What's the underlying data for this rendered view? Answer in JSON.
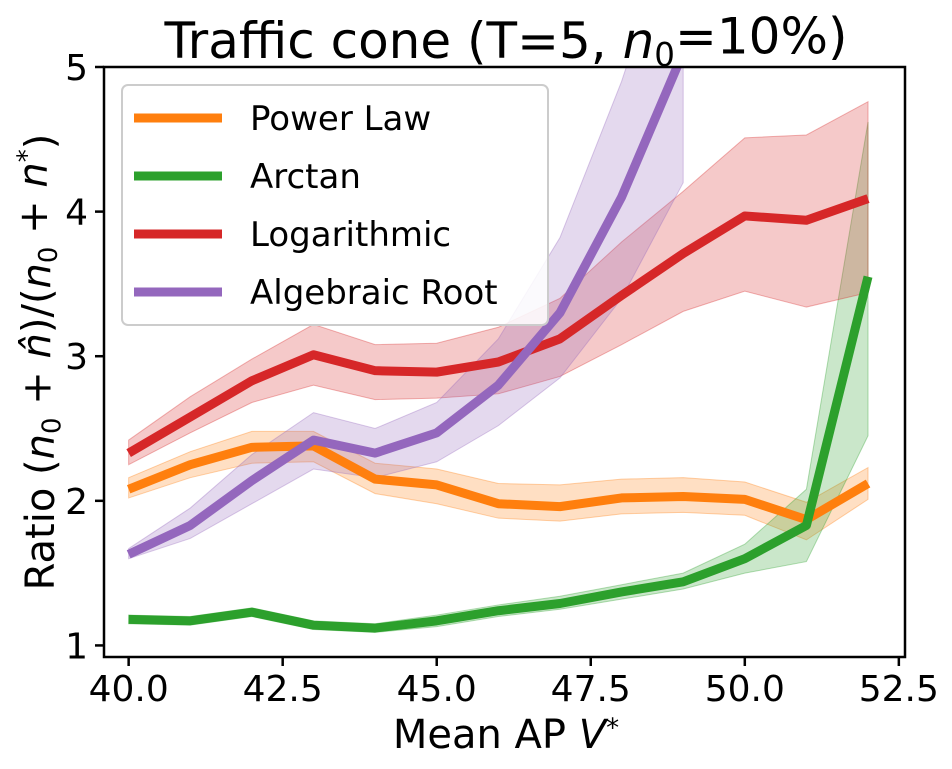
{
  "chart_data": {
    "type": "line",
    "title": "Traffic cone (T=5, n₀=10%)",
    "xlabel": "Mean AP V*",
    "ylabel": "Ratio (n₀ + n̂)/(n₀ + n*)",
    "xlim": [
      39.6,
      52.6
    ],
    "ylim": [
      0.92,
      5.0
    ],
    "xticks": [
      40.0,
      42.5,
      45.0,
      47.5,
      50.0,
      52.5
    ],
    "xtick_labels": [
      "40.0",
      "42.5",
      "45.0",
      "47.5",
      "50.0",
      "52.5"
    ],
    "yticks": [
      1,
      2,
      3,
      4,
      5
    ],
    "ytick_labels": [
      "1",
      "2",
      "3",
      "4",
      "5"
    ],
    "legend_position": "top-left",
    "grid": false,
    "series": [
      {
        "name": "Power Law",
        "color": "#ff7f0e",
        "x": [
          40,
          41,
          42,
          43,
          44,
          45,
          46,
          47,
          48,
          49,
          50,
          51,
          52
        ],
        "y": [
          2.08,
          2.25,
          2.37,
          2.38,
          2.15,
          2.11,
          1.98,
          1.96,
          2.02,
          2.03,
          2.01,
          1.87,
          2.12
        ],
        "lower": [
          2.02,
          2.16,
          2.26,
          2.27,
          2.05,
          1.98,
          1.88,
          1.86,
          1.91,
          1.92,
          1.9,
          1.73,
          2.01
        ],
        "upper": [
          2.16,
          2.34,
          2.48,
          2.48,
          2.26,
          2.22,
          2.12,
          2.11,
          2.15,
          2.16,
          2.13,
          1.99,
          2.23
        ]
      },
      {
        "name": "Arctan",
        "color": "#2ca02c",
        "x": [
          40,
          41,
          42,
          43,
          44,
          45,
          46,
          47,
          48,
          49,
          50,
          51,
          52
        ],
        "y": [
          1.18,
          1.17,
          1.23,
          1.14,
          1.12,
          1.17,
          1.24,
          1.29,
          1.37,
          1.44,
          1.6,
          1.83,
          3.55
        ],
        "lower": [
          1.15,
          1.14,
          1.2,
          1.11,
          1.09,
          1.13,
          1.2,
          1.25,
          1.32,
          1.39,
          1.5,
          1.58,
          2.45
        ],
        "upper": [
          1.21,
          1.2,
          1.26,
          1.17,
          1.15,
          1.21,
          1.28,
          1.34,
          1.42,
          1.5,
          1.7,
          2.08,
          4.62
        ]
      },
      {
        "name": "Logarithmic",
        "color": "#d62728",
        "x": [
          40,
          41,
          42,
          43,
          44,
          45,
          46,
          47,
          48,
          49,
          50,
          51,
          52
        ],
        "y": [
          2.33,
          2.58,
          2.83,
          3.01,
          2.9,
          2.89,
          2.96,
          3.12,
          3.42,
          3.71,
          3.97,
          3.94,
          4.09
        ],
        "lower": [
          2.25,
          2.47,
          2.68,
          2.8,
          2.7,
          2.71,
          2.74,
          2.86,
          3.08,
          3.31,
          3.45,
          3.34,
          3.44
        ],
        "upper": [
          2.42,
          2.72,
          2.98,
          3.22,
          3.08,
          3.09,
          3.2,
          3.4,
          3.79,
          4.14,
          4.51,
          4.53,
          4.76
        ]
      },
      {
        "name": "Algebraic Root",
        "color": "#9467bd",
        "x": [
          40,
          41,
          42,
          43,
          44,
          45,
          46,
          47,
          48,
          49
        ],
        "y": [
          1.63,
          1.83,
          2.14,
          2.42,
          2.33,
          2.47,
          2.8,
          3.3,
          4.1,
          5.1
        ],
        "lower": [
          1.6,
          1.74,
          1.98,
          2.22,
          2.16,
          2.27,
          2.52,
          2.85,
          3.4,
          4.2
        ],
        "upper": [
          1.67,
          1.95,
          2.32,
          2.61,
          2.5,
          2.68,
          3.12,
          3.82,
          4.9,
          6.2
        ]
      }
    ]
  }
}
